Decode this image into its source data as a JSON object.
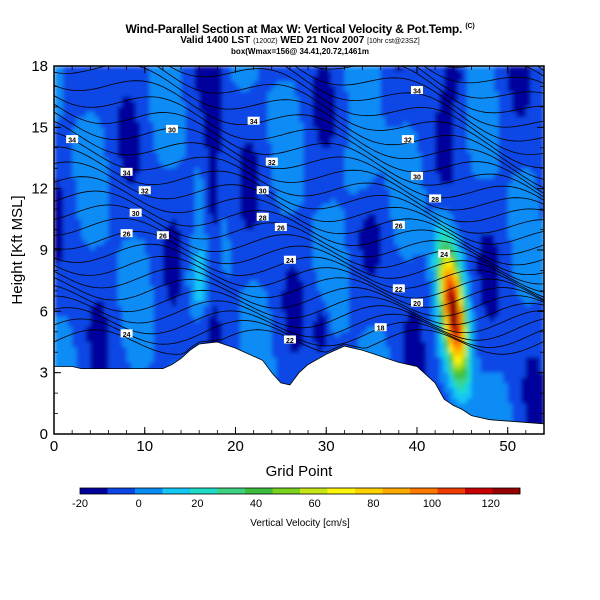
{
  "title": {
    "main": "Wind-Parallel Section at Max W: Vertical Velocity & Pot.Temp.",
    "main_suffix": "(C)",
    "valid_prefix": "Valid 1400 LST",
    "valid_utc": "(1200Z)",
    "valid_date": "WED 21 Nov 2007",
    "valid_suffix": "[10hr cst@23SZ]",
    "box_info": "box(Wmax=156@ 34.41,20.72,1461m"
  },
  "colorbar": {
    "label": "Vertical Velocity [cm/s]",
    "ticks": [
      "-20",
      "0",
      "20",
      "40",
      "60",
      "80",
      "100",
      "120"
    ],
    "colors": [
      "#00009c",
      "#0a46e6",
      "#0a8cf5",
      "#14c8f5",
      "#1edcc8",
      "#3cd282",
      "#3cbe3c",
      "#78d21e",
      "#c8e614",
      "#fff50a",
      "#ffd200",
      "#ffaa00",
      "#ff7800",
      "#f03c00",
      "#c80000",
      "#960000"
    ]
  },
  "chart_data": {
    "type": "heatmap",
    "title": "Wind-Parallel Section at Max W: Vertical Velocity & Pot.Temp.",
    "xlabel": "Grid Point",
    "ylabel": "Height [Kft MSL]",
    "xlim": [
      0,
      54
    ],
    "ylim": [
      0,
      18
    ],
    "xticks": [
      "0",
      "10",
      "20",
      "30",
      "40",
      "50"
    ],
    "yticks": [
      "0",
      "3",
      "6",
      "9",
      "12",
      "15",
      "18"
    ],
    "colorbar_range_cm_s": [
      -20,
      130
    ],
    "colorbar_label": "Vertical Velocity [cm/s]",
    "max_updraft": {
      "grid_point": 44,
      "height_kft": 6,
      "value_cm_s": 156
    },
    "terrain_kft": [
      [
        0,
        3.3
      ],
      [
        2,
        3.3
      ],
      [
        3,
        3.2
      ],
      [
        12,
        3.2
      ],
      [
        13,
        3.4
      ],
      [
        14,
        3.7
      ],
      [
        15,
        4.1
      ],
      [
        16,
        4.4
      ],
      [
        18,
        4.5
      ],
      [
        20,
        4.2
      ],
      [
        21,
        4.0
      ],
      [
        23,
        3.6
      ],
      [
        24,
        3.0
      ],
      [
        25,
        2.5
      ],
      [
        26,
        2.4
      ],
      [
        27,
        3.0
      ],
      [
        28,
        3.4
      ],
      [
        30,
        3.9
      ],
      [
        32,
        4.3
      ],
      [
        34,
        4.1
      ],
      [
        36,
        3.8
      ],
      [
        38,
        3.5
      ],
      [
        40,
        3.3
      ],
      [
        42,
        2.5
      ],
      [
        43,
        1.7
      ],
      [
        44,
        1.4
      ],
      [
        45,
        1.2
      ],
      [
        46,
        0.9
      ],
      [
        48,
        0.7
      ],
      [
        54,
        0.5
      ]
    ],
    "theta_contour_labels": [
      {
        "text": "34",
        "x": 2,
        "y": 14.4
      },
      {
        "text": "30",
        "x": 13,
        "y": 14.9
      },
      {
        "text": "34",
        "x": 22,
        "y": 15.3
      },
      {
        "text": "34",
        "x": 40,
        "y": 16.8
      },
      {
        "text": "32",
        "x": 24,
        "y": 13.3
      },
      {
        "text": "32",
        "x": 39,
        "y": 14.4
      },
      {
        "text": "34",
        "x": 8,
        "y": 12.8
      },
      {
        "text": "30",
        "x": 23,
        "y": 11.9
      },
      {
        "text": "32",
        "x": 10,
        "y": 11.9
      },
      {
        "text": "30",
        "x": 40,
        "y": 12.6
      },
      {
        "text": "30",
        "x": 9,
        "y": 10.8
      },
      {
        "text": "28",
        "x": 23,
        "y": 10.6
      },
      {
        "text": "28",
        "x": 42,
        "y": 11.5
      },
      {
        "text": "26",
        "x": 8,
        "y": 9.8
      },
      {
        "text": "26",
        "x": 12,
        "y": 9.7
      },
      {
        "text": "26",
        "x": 25,
        "y": 10.1
      },
      {
        "text": "26",
        "x": 38,
        "y": 10.2
      },
      {
        "text": "24",
        "x": 26,
        "y": 8.5
      },
      {
        "text": "24",
        "x": 43,
        "y": 8.8
      },
      {
        "text": "22",
        "x": 38,
        "y": 7.1
      },
      {
        "text": "20",
        "x": 40,
        "y": 6.4
      },
      {
        "text": "18",
        "x": 36,
        "y": 5.2
      },
      {
        "text": "24",
        "x": 8,
        "y": 4.9
      },
      {
        "text": "22",
        "x": 26,
        "y": 4.6
      }
    ]
  }
}
